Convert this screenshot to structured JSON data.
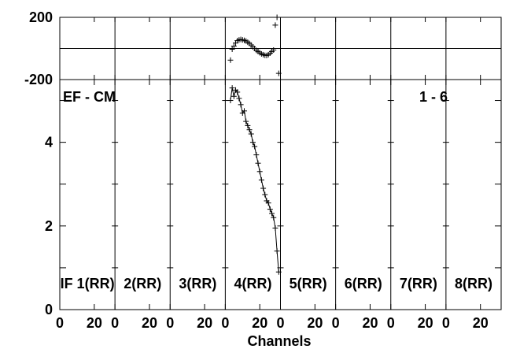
{
  "chart_data": {
    "type": "scatter",
    "baseline_label": "EF - CM",
    "range_label": "1 - 6",
    "xlabel": "Channels",
    "panel_labels": [
      "IF 1(RR)",
      "2(RR)",
      "3(RR)",
      "4(RR)",
      "5(RR)",
      "6(RR)",
      "7(RR)",
      "8(RR)"
    ],
    "panel_xticks": [
      "0",
      "20"
    ],
    "panel_xlim": [
      0,
      32
    ],
    "top_ylim": [
      -200,
      200
    ],
    "top_yticks": [
      "200",
      "-200"
    ],
    "bottom_ylim": [
      0,
      5.5
    ],
    "bottom_yticks": [
      "0",
      "2",
      "4"
    ],
    "active_panel": 3,
    "phase": {
      "x": [
        3,
        4,
        5,
        6,
        7,
        8,
        9,
        10,
        11,
        12,
        13,
        14,
        15,
        16,
        17,
        18,
        19,
        20,
        21,
        22,
        23,
        24,
        25,
        26,
        27,
        28,
        29,
        30,
        31
      ],
      "y": [
        -75,
        -5,
        15,
        35,
        50,
        55,
        58,
        55,
        52,
        48,
        40,
        32,
        22,
        10,
        0,
        -12,
        -20,
        -28,
        -35,
        -40,
        -44,
        -45,
        -40,
        -30,
        -20,
        -10,
        150,
        210,
        -160
      ]
    },
    "amplitude": {
      "x": [
        3,
        4,
        5,
        6,
        7,
        8,
        9,
        10,
        11,
        12,
        13,
        14,
        15,
        16,
        17,
        18,
        19,
        20,
        21,
        22,
        23,
        24,
        25,
        26,
        27,
        28,
        29,
        30,
        31
      ],
      "y": [
        5.0,
        5.3,
        5.1,
        5.25,
        5.2,
        5.05,
        4.9,
        4.7,
        4.75,
        4.5,
        4.4,
        4.3,
        4.2,
        4.0,
        3.9,
        3.7,
        3.5,
        3.3,
        3.1,
        2.9,
        2.75,
        2.6,
        2.55,
        2.4,
        2.3,
        2.2,
        1.95,
        1.4,
        0.9
      ]
    }
  }
}
